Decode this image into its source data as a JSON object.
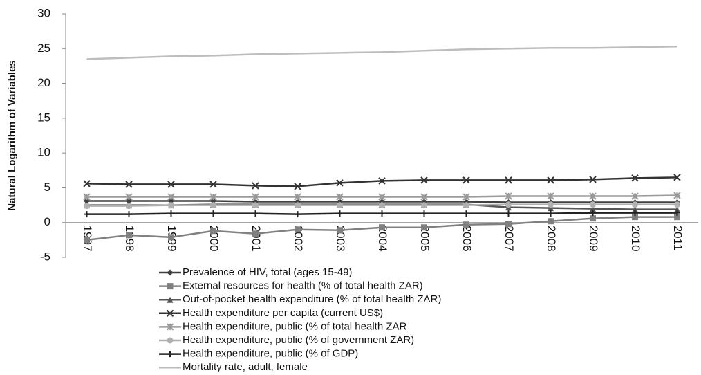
{
  "chart_data": {
    "type": "line",
    "y_label": "Natural Logarithm of Variables",
    "categories": [
      "1997",
      "1998",
      "1999",
      "2000",
      "2001",
      "2002",
      "2003",
      "2004",
      "2005",
      "2006",
      "2007",
      "2008",
      "2009",
      "2010",
      "2011"
    ],
    "ylim": [
      -5,
      30
    ],
    "yticks": [
      -5,
      0,
      5,
      10,
      15,
      20,
      25,
      30
    ],
    "series": [
      {
        "name": "Prevalence of HIV, total (ages 15-49)",
        "color": "#404040",
        "marker": "diamond",
        "values": [
          3.1,
          3.1,
          3.1,
          3.1,
          3.0,
          3.0,
          3.0,
          3.0,
          3.0,
          3.0,
          2.9,
          2.9,
          2.9,
          2.9,
          2.9
        ]
      },
      {
        "name": "External resources for health (% of total health ZAR)",
        "color": "#808080",
        "marker": "square",
        "values": [
          -2.5,
          -1.8,
          -2.1,
          -1.2,
          -1.6,
          -1.0,
          -1.1,
          -0.7,
          -0.7,
          -0.3,
          -0.2,
          0.2,
          0.6,
          0.8,
          0.8
        ]
      },
      {
        "name": "Out-of-pocket health expenditure (% of total health ZAR)",
        "color": "#555555",
        "marker": "triangle",
        "values": [
          2.5,
          2.5,
          2.5,
          2.6,
          2.6,
          2.6,
          2.6,
          2.6,
          2.6,
          2.6,
          2.2,
          2.1,
          2.0,
          1.9,
          1.9
        ]
      },
      {
        "name": "Health expenditure per capita (current US$)",
        "color": "#333333",
        "marker": "x",
        "values": [
          5.6,
          5.5,
          5.5,
          5.5,
          5.3,
          5.2,
          5.7,
          6.0,
          6.1,
          6.1,
          6.1,
          6.1,
          6.2,
          6.4,
          6.5
        ]
      },
      {
        "name": "Health expenditure, public (% of total health ZAR",
        "color": "#9a9a9a",
        "marker": "star",
        "values": [
          3.7,
          3.7,
          3.7,
          3.7,
          3.7,
          3.7,
          3.7,
          3.7,
          3.7,
          3.7,
          3.8,
          3.8,
          3.8,
          3.8,
          3.9
        ]
      },
      {
        "name": "Health expenditure, public (% of government ZAR)",
        "color": "#b0b0b0",
        "marker": "circle",
        "values": [
          2.4,
          2.4,
          2.5,
          2.5,
          2.5,
          2.5,
          2.5,
          2.5,
          2.5,
          2.5,
          2.6,
          2.6,
          2.6,
          2.6,
          2.6
        ]
      },
      {
        "name": "Health expenditure, public (% of GDP)",
        "color": "#222222",
        "marker": "plus",
        "values": [
          1.2,
          1.2,
          1.3,
          1.3,
          1.3,
          1.2,
          1.3,
          1.3,
          1.3,
          1.3,
          1.3,
          1.3,
          1.4,
          1.4,
          1.4
        ]
      },
      {
        "name": "Mortality rate, adult, female",
        "color": "#bdbdbd",
        "marker": "none",
        "values": [
          23.5,
          23.7,
          23.9,
          24.0,
          24.2,
          24.3,
          24.4,
          24.5,
          24.7,
          24.9,
          25.0,
          25.1,
          25.1,
          25.2,
          25.3
        ]
      }
    ]
  }
}
